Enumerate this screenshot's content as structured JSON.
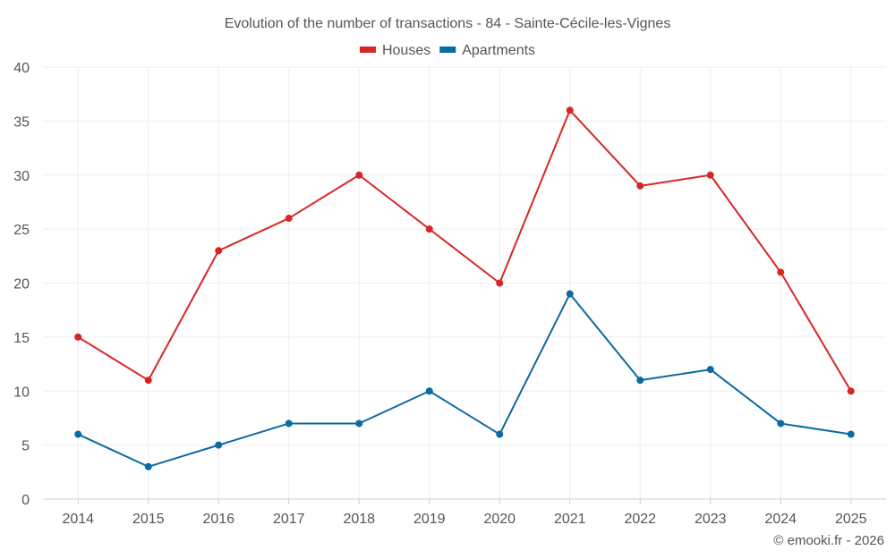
{
  "chart_data": {
    "type": "line",
    "title": "Evolution of the number of transactions - 84 - Sainte-Cécile-les-Vignes",
    "xlabel": "",
    "ylabel": "",
    "categories": [
      "2014",
      "2015",
      "2016",
      "2017",
      "2018",
      "2019",
      "2020",
      "2021",
      "2022",
      "2023",
      "2024",
      "2025"
    ],
    "ylim": [
      0,
      40
    ],
    "yticks": [
      0,
      5,
      10,
      15,
      20,
      25,
      30,
      35,
      40
    ],
    "grid": true,
    "legend_position": "top-center",
    "series": [
      {
        "name": "Houses",
        "color": "#d62728",
        "values": [
          15,
          11,
          23,
          26,
          30,
          25,
          20,
          36,
          29,
          30,
          21,
          10
        ]
      },
      {
        "name": "Apartments",
        "color": "#0a6aa1",
        "values": [
          6,
          3,
          5,
          7,
          7,
          10,
          6,
          19,
          11,
          12,
          7,
          6
        ]
      }
    ]
  },
  "credit": "© emooki.fr - 2026"
}
